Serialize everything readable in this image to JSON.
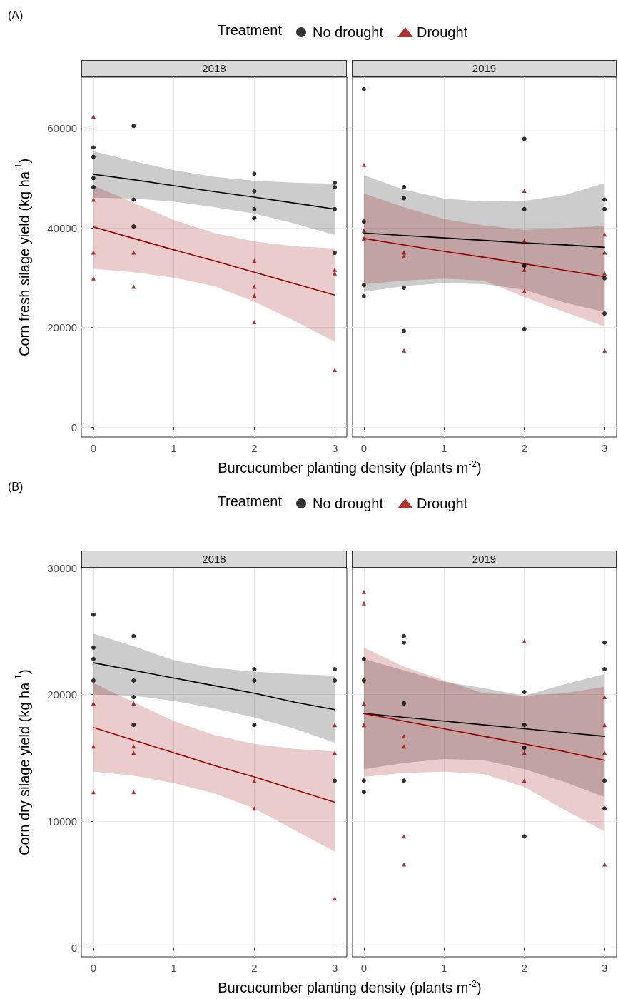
{
  "chart_data": [
    {
      "type": "scatter",
      "title": "2018",
      "annotations": [
        "(A)"
      ],
      "legend": "top",
      "legend_title": "Treatment",
      "xlabel": "Burcucumber planting density (plants m$^{-2}$)",
      "ylabel": "Corn fresh silage yield (kg ha$^{-1}$)",
      "xlim": [
        -0.15,
        3.15
      ],
      "xticks": [
        0,
        1,
        2,
        3
      ],
      "ylim": [
        -2000,
        70300
      ],
      "yticks": [
        0,
        20000,
        40000,
        60000
      ],
      "grid": true,
      "series": [
        {
          "name": "No drought",
          "type": "scatter",
          "marker": "circle",
          "color": "#000000",
          "x": [
            0,
            0,
            0,
            0,
            0.5,
            0.5,
            0.5,
            2,
            2,
            2,
            2,
            3,
            3,
            3,
            3
          ],
          "values": [
            56200,
            54300,
            50000,
            48200,
            60500,
            45700,
            40300,
            50900,
            47400,
            43800,
            42000,
            49100,
            48200,
            43800,
            35000
          ]
        },
        {
          "name": "Drought",
          "type": "scatter",
          "marker": "triangle",
          "color": "#990000",
          "x": [
            0,
            0,
            0,
            0,
            0.5,
            0.5,
            2,
            2,
            2,
            2,
            3,
            3,
            3
          ],
          "values": [
            62400,
            45700,
            35100,
            29900,
            35100,
            28200,
            33400,
            28200,
            26400,
            21100,
            31600,
            30900,
            11500
          ]
        },
        {
          "type": "line",
          "marker": "none",
          "line_style": "solid",
          "color": "#000000",
          "x": [
            0,
            0.5,
            1,
            1.5,
            2,
            2.5,
            3
          ],
          "values": [
            50800,
            49700,
            48500,
            47300,
            46200,
            45000,
            43800
          ],
          "lower": [
            46100,
            45900,
            45300,
            44200,
            42900,
            40900,
            38600
          ],
          "upper": [
            55400,
            53400,
            51600,
            50300,
            49500,
            49100,
            48900
          ]
        },
        {
          "type": "line",
          "marker": "none",
          "line_style": "solid",
          "color": "#990000",
          "x": [
            0,
            0.5,
            1,
            1.5,
            2,
            2.5,
            3
          ],
          "values": [
            40200,
            37900,
            35600,
            33400,
            31100,
            28800,
            26500
          ],
          "lower": [
            31800,
            31100,
            30000,
            28300,
            25200,
            21300,
            17100
          ],
          "upper": [
            48500,
            45100,
            41600,
            39000,
            37300,
            36300,
            35900
          ]
        }
      ]
    },
    {
      "type": "scatter",
      "title": "2019",
      "tick_labels": "x",
      "xlim": [
        -0.15,
        3.15
      ],
      "xticks": [
        0,
        1,
        2,
        3
      ],
      "ylim": [
        -2000,
        70300
      ],
      "yticks": [
        0,
        20000,
        40000,
        60000
      ],
      "grid": true,
      "series": [
        {
          "type": "scatter",
          "marker": "circle",
          "color": "#000000",
          "x": [
            0,
            0,
            0,
            0,
            0.5,
            0.5,
            0.5,
            0.5,
            2,
            2,
            2,
            2,
            3,
            3,
            3,
            3
          ],
          "values": [
            67900,
            41300,
            28500,
            26300,
            48200,
            46000,
            28000,
            19300,
            57900,
            43800,
            32400,
            19700,
            45700,
            43800,
            29900,
            22800
          ]
        },
        {
          "type": "scatter",
          "marker": "triangle",
          "color": "#990000",
          "x": [
            0,
            0,
            0,
            0.5,
            0.5,
            0.5,
            2,
            2,
            2,
            2,
            3,
            3,
            3,
            3
          ],
          "values": [
            52700,
            39500,
            37900,
            35100,
            34300,
            15400,
            47500,
            37400,
            31600,
            27300,
            38700,
            35100,
            30900,
            15400
          ]
        },
        {
          "type": "line",
          "marker": "none",
          "line_style": "solid",
          "color": "#000000",
          "x": [
            0,
            0.5,
            1,
            1.5,
            2,
            2.5,
            3
          ],
          "values": [
            39000,
            38500,
            38000,
            37500,
            37000,
            36600,
            36100
          ],
          "lower": [
            27200,
            28300,
            28900,
            28700,
            27600,
            25000,
            23100
          ],
          "upper": [
            50600,
            47700,
            45900,
            45300,
            45500,
            46600,
            49000
          ]
        },
        {
          "type": "line",
          "marker": "none",
          "line_style": "solid",
          "color": "#990000",
          "x": [
            0,
            0.5,
            1,
            1.5,
            2,
            2.5,
            3
          ],
          "values": [
            37900,
            36600,
            35300,
            34100,
            32800,
            31500,
            30200
          ],
          "lower": [
            28700,
            29400,
            29800,
            29400,
            26100,
            23100,
            20200
          ],
          "upper": [
            46900,
            44200,
            41800,
            40500,
            39600,
            40000,
            40400
          ]
        }
      ]
    },
    {
      "type": "scatter",
      "title": "2018",
      "annotations": [
        "(B)"
      ],
      "legend": "top",
      "legend_title": "Treatment",
      "xlabel": "Burcucumber planting density (plants m$^{-2}$)",
      "ylabel": "Corn dry silage yield (kg ha$^{-1}$)",
      "xlim": [
        -0.15,
        3.15
      ],
      "xticks": [
        0,
        1,
        2,
        3
      ],
      "ylim": [
        -700,
        30000
      ],
      "yticks": [
        0,
        10000,
        20000,
        30000
      ],
      "grid": true,
      "series": [
        {
          "name": "No drought",
          "type": "scatter",
          "marker": "circle",
          "color": "#000000",
          "x": [
            0,
            0,
            0,
            0,
            0.5,
            0.5,
            0.5,
            0.5,
            2,
            2,
            2,
            3,
            3,
            3
          ],
          "values": [
            26300,
            23700,
            22800,
            21100,
            24600,
            21100,
            19800,
            17600,
            22000,
            21100,
            17600,
            22000,
            21100,
            13200
          ]
        },
        {
          "name": "Drought",
          "type": "scatter",
          "marker": "triangle",
          "color": "#990000",
          "x": [
            0,
            0,
            0,
            0.5,
            0.5,
            0.5,
            0.5,
            2,
            2,
            3,
            3,
            3
          ],
          "values": [
            19300,
            15900,
            12300,
            19300,
            15900,
            15400,
            12300,
            13200,
            11000,
            17600,
            15400,
            3900
          ]
        },
        {
          "type": "line",
          "marker": "none",
          "line_style": "solid",
          "color": "#000000",
          "x": [
            0,
            0.5,
            1,
            1.5,
            2,
            2.5,
            3
          ],
          "values": [
            22500,
            21900,
            21300,
            20700,
            20100,
            19400,
            18800
          ],
          "lower": [
            20000,
            19900,
            19500,
            18900,
            18200,
            17300,
            16200
          ],
          "upper": [
            24800,
            23800,
            22700,
            22100,
            21800,
            21600,
            21500
          ]
        },
        {
          "type": "line",
          "marker": "none",
          "line_style": "solid",
          "color": "#990000",
          "x": [
            0,
            0.5,
            1,
            1.5,
            2,
            2.5,
            3
          ],
          "values": [
            17400,
            16400,
            15400,
            14400,
            13500,
            12500,
            11500
          ],
          "lower": [
            13900,
            13600,
            13000,
            12200,
            11000,
            9300,
            7600
          ],
          "upper": [
            20900,
            19400,
            17900,
            16800,
            16100,
            15700,
            15500
          ]
        }
      ]
    },
    {
      "type": "scatter",
      "title": "2019",
      "tick_labels": "x",
      "xlim": [
        -0.15,
        3.15
      ],
      "xticks": [
        0,
        1,
        2,
        3
      ],
      "ylim": [
        -700,
        30000
      ],
      "yticks": [
        0,
        10000,
        20000,
        30000
      ],
      "grid": true,
      "series": [
        {
          "type": "scatter",
          "marker": "circle",
          "color": "#000000",
          "x": [
            0,
            0,
            0,
            0,
            0.5,
            0.5,
            0.5,
            0.5,
            2,
            2,
            2,
            2,
            3,
            3,
            3,
            3
          ],
          "values": [
            22800,
            21100,
            13200,
            12300,
            24600,
            24100,
            19300,
            13200,
            20200,
            17600,
            15800,
            8800,
            24100,
            22000,
            13200,
            11000
          ]
        },
        {
          "type": "scatter",
          "marker": "triangle",
          "color": "#990000",
          "x": [
            0,
            0,
            0,
            0,
            0.5,
            0.5,
            0.5,
            0.5,
            2,
            2,
            2,
            3,
            3,
            3,
            3
          ],
          "values": [
            28100,
            27200,
            19300,
            17600,
            16700,
            15900,
            8800,
            6600,
            24200,
            15400,
            13200,
            19800,
            17600,
            15400,
            6600
          ]
        },
        {
          "type": "line",
          "marker": "none",
          "line_style": "solid",
          "color": "#000000",
          "x": [
            0,
            0.5,
            1,
            1.5,
            2,
            2.5,
            3
          ],
          "values": [
            18500,
            18200,
            17900,
            17600,
            17300,
            17000,
            16700
          ],
          "lower": [
            14100,
            14600,
            14900,
            14800,
            14100,
            13100,
            11900
          ],
          "upper": [
            22800,
            21900,
            21000,
            20500,
            19900,
            20800,
            21600
          ]
        },
        {
          "type": "line",
          "marker": "none",
          "line_style": "solid",
          "color": "#990000",
          "x": [
            0,
            0.5,
            1,
            1.5,
            2,
            2.5,
            3
          ],
          "values": [
            18500,
            17900,
            17300,
            16700,
            16100,
            15500,
            14800
          ],
          "lower": [
            13500,
            13800,
            13900,
            13700,
            12700,
            10900,
            9200
          ],
          "upper": [
            23700,
            22200,
            21100,
            20100,
            19900,
            20100,
            20600
          ]
        }
      ]
    }
  ]
}
